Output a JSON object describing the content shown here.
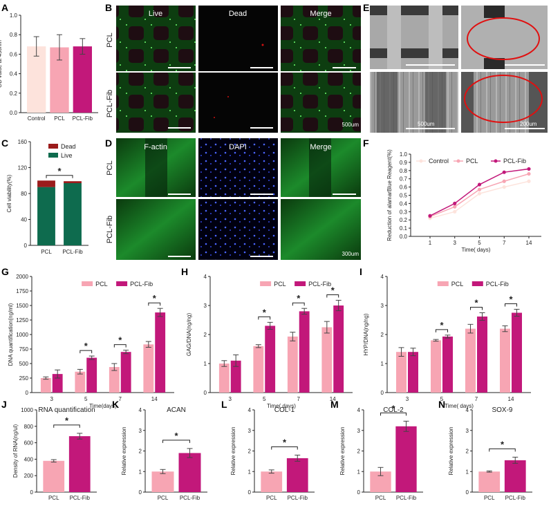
{
  "panel_letters": {
    "A": "A",
    "B": "B",
    "C": "C",
    "D": "D",
    "E": "E",
    "F": "F",
    "G": "G",
    "H": "H",
    "I": "I",
    "J": "J",
    "K": "K",
    "L": "L",
    "M": "M",
    "N": "N"
  },
  "colors": {
    "control": "#fde3dc",
    "pcl": "#f7a5b3",
    "pcl_fib": "#c2187a",
    "dead": "#9b1c1c",
    "live": "#0e6b4e",
    "green": "#1fa33a",
    "blue": "#2a44e0",
    "ellipse": "#e01010"
  },
  "micro_b": {
    "columns": [
      "Live",
      "Dead",
      "Merge"
    ],
    "rows": [
      "PCL",
      "PCL-Fib"
    ],
    "scale_text": "500um"
  },
  "micro_d": {
    "columns": [
      "F-actin",
      "DAPI",
      "Merge"
    ],
    "rows": [
      "PCL",
      "PCL-Fib"
    ],
    "scale_text": "300um"
  },
  "sem_e": {
    "scale_left": "500um",
    "scale_right": "200um"
  },
  "chart_data": [
    {
      "id": "A",
      "type": "bar",
      "categories": [
        "Control",
        "PCL",
        "PCL-Fib"
      ],
      "values": [
        0.68,
        0.67,
        0.68
      ],
      "errors": [
        0.1,
        0.13,
        0.08
      ],
      "ylabel": "OD value at 450nm",
      "ylim": [
        0,
        1.0
      ],
      "yticks": [
        0.0,
        0.2,
        0.4,
        0.6,
        0.8,
        1.0
      ]
    },
    {
      "id": "C",
      "type": "bar",
      "stacked": true,
      "categories": [
        "PCL",
        "PCL-Fib"
      ],
      "series": [
        {
          "name": "Live",
          "values": [
            90,
            96
          ]
        },
        {
          "name": "Dead",
          "values": [
            10,
            3
          ]
        }
      ],
      "ylabel": "Cell viability(%)",
      "ylim": [
        0,
        160
      ],
      "yticks": [
        0,
        40,
        80,
        120,
        160
      ],
      "legend": "top-right",
      "significance": "*"
    },
    {
      "id": "F",
      "type": "line",
      "x": [
        1,
        3,
        5,
        7,
        14
      ],
      "xlabel": "Time( days)",
      "ylabel": "Reduction of alamarBlue Reagent(%)",
      "ylim": [
        0,
        1.0
      ],
      "yticks": [
        0.0,
        0.1,
        0.2,
        0.3,
        0.4,
        0.5,
        0.6,
        0.7,
        0.8,
        0.9,
        1.0
      ],
      "series": [
        {
          "name": "Control",
          "values": [
            0.22,
            0.3,
            0.52,
            0.6,
            0.67
          ]
        },
        {
          "name": "PCL",
          "values": [
            0.24,
            0.36,
            0.57,
            0.67,
            0.76
          ]
        },
        {
          "name": "PCL-Fib",
          "values": [
            0.25,
            0.4,
            0.63,
            0.78,
            0.82
          ]
        }
      ],
      "legend": "top"
    },
    {
      "id": "G",
      "type": "bar",
      "categories": [
        "3",
        "5",
        "7",
        "14"
      ],
      "xlabel": "Time(days)",
      "ylabel": "DNA quantification(ng/ml)",
      "ylim": [
        0,
        2000
      ],
      "yticks": [
        0,
        250,
        500,
        750,
        1000,
        1250,
        1500,
        1750,
        2000
      ],
      "series": [
        {
          "name": "PCL",
          "values": [
            250,
            360,
            440,
            830
          ],
          "errors": [
            20,
            40,
            60,
            50
          ]
        },
        {
          "name": "PCL-Fib",
          "values": [
            320,
            600,
            700,
            1380
          ],
          "errors": [
            70,
            30,
            30,
            70
          ]
        }
      ],
      "significance": [
        "",
        "*",
        "*",
        "*"
      ]
    },
    {
      "id": "H",
      "type": "bar",
      "categories": [
        "3",
        "5",
        "7",
        "14"
      ],
      "xlabel": "Time( days)",
      "ylabel": "GAG/DNA(ng/ng)",
      "ylim": [
        0,
        4
      ],
      "yticks": [
        0,
        1,
        2,
        3,
        4
      ],
      "series": [
        {
          "name": "PCL",
          "values": [
            1.0,
            1.6,
            1.93,
            2.25
          ],
          "errors": [
            0.1,
            0.05,
            0.15,
            0.2
          ]
        },
        {
          "name": "PCL-Fib",
          "values": [
            1.1,
            2.3,
            2.8,
            3.0
          ],
          "errors": [
            0.2,
            0.12,
            0.1,
            0.18
          ]
        }
      ],
      "significance": [
        "",
        "*",
        "*",
        "*"
      ]
    },
    {
      "id": "I",
      "type": "bar",
      "categories": [
        "3",
        "5",
        "7",
        "14"
      ],
      "xlabel": "Time( days)",
      "ylabel": "HYP/DNA(ng/ng)",
      "ylim": [
        0,
        4
      ],
      "yticks": [
        0,
        1,
        2,
        3,
        4
      ],
      "series": [
        {
          "name": "PCL",
          "values": [
            1.4,
            1.8,
            2.2,
            2.2
          ],
          "errors": [
            0.15,
            0.03,
            0.15,
            0.1
          ]
        },
        {
          "name": "PCL-Fib",
          "values": [
            1.4,
            1.93,
            2.62,
            2.75
          ],
          "errors": [
            0.13,
            0.05,
            0.13,
            0.12
          ]
        }
      ],
      "significance": [
        "",
        "*",
        "*",
        "*"
      ]
    },
    {
      "id": "J",
      "type": "bar",
      "title": "RNA quantification",
      "categories": [
        "PCL",
        "PCL-Fib"
      ],
      "values": [
        380,
        680
      ],
      "errors": [
        15,
        35
      ],
      "ylabel": "Density of RNA(ng/ul)",
      "ylim": [
        0,
        1000
      ],
      "yticks": [
        0,
        200,
        400,
        600,
        800,
        1000
      ],
      "significance": "*"
    },
    {
      "id": "K",
      "type": "bar",
      "title": "ACAN",
      "categories": [
        "PCL",
        "PCL-Fib"
      ],
      "values": [
        1.0,
        1.9
      ],
      "errors": [
        0.1,
        0.22
      ],
      "ylabel": "Relative expression",
      "ylim": [
        0,
        4
      ],
      "yticks": [
        0,
        1,
        2,
        3,
        4
      ],
      "significance": "*"
    },
    {
      "id": "L",
      "type": "bar",
      "title": "COL-1",
      "categories": [
        "PCL",
        "PCL-Fib"
      ],
      "values": [
        1.0,
        1.65
      ],
      "errors": [
        0.08,
        0.15
      ],
      "ylabel": "Relative expression",
      "ylim": [
        0,
        4
      ],
      "yticks": [
        0,
        1,
        2,
        3,
        4
      ],
      "significance": "*"
    },
    {
      "id": "M",
      "type": "bar",
      "title": "COL-2",
      "categories": [
        "PCL",
        "PCL-Fib"
      ],
      "values": [
        1.0,
        3.2
      ],
      "errors": [
        0.2,
        0.25
      ],
      "ylabel": "Relative expression",
      "ylim": [
        0,
        4
      ],
      "yticks": [
        0,
        1,
        2,
        3,
        4
      ],
      "significance": "*"
    },
    {
      "id": "N",
      "type": "bar",
      "title": "SOX-9",
      "categories": [
        "PCL",
        "PCL-Fib"
      ],
      "values": [
        1.0,
        1.55
      ],
      "errors": [
        0.03,
        0.15
      ],
      "ylabel": "Relative expression",
      "ylim": [
        0,
        4
      ],
      "yticks": [
        0,
        1,
        2,
        3,
        4
      ],
      "significance": "*"
    }
  ]
}
